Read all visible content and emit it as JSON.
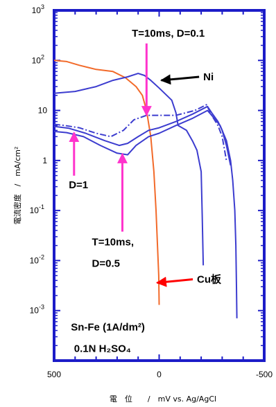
{
  "chart_data": {
    "type": "line",
    "title": "",
    "xlabel": "電　位　　/　mV vs. Ag/AgCl",
    "ylabel": "電流密度　/　mA/cm²",
    "x_scale": "linear",
    "xlim": [
      500,
      -500
    ],
    "y_scale": "log",
    "ylim": [
      0.0001,
      1000
    ],
    "x_ticks": [
      "500",
      "0",
      "-500"
    ],
    "y_ticks": [
      {
        "base": "10",
        "exp": "3"
      },
      {
        "base": "10",
        "exp": "2"
      },
      {
        "base": "10",
        "exp": ""
      },
      {
        "base": "1",
        "exp": ""
      },
      {
        "base": "10",
        "exp": "-1"
      },
      {
        "base": "10",
        "exp": "-2"
      },
      {
        "base": "10",
        "exp": "-3"
      }
    ],
    "grid": false,
    "series": [
      {
        "color": "#f26a2a",
        "style": "solid",
        "points": [
          [
            500,
            100
          ],
          [
            440,
            95
          ],
          [
            380,
            80
          ],
          [
            300,
            66
          ],
          [
            220,
            60
          ],
          [
            160,
            45
          ],
          [
            110,
            30
          ],
          [
            80,
            20
          ],
          [
            60,
            10
          ],
          [
            40,
            3
          ],
          [
            25,
            0.6
          ],
          [
            15,
            0.1
          ],
          [
            8,
            0.02
          ],
          [
            2,
            0.005
          ],
          [
            0,
            0.0013
          ]
        ]
      },
      {
        "color": "#3c3ccf",
        "style": "solid",
        "points": [
          [
            500,
            22
          ],
          [
            400,
            24
          ],
          [
            300,
            30
          ],
          [
            220,
            40
          ],
          [
            150,
            47
          ],
          [
            100,
            55
          ],
          [
            70,
            50
          ],
          [
            40,
            40
          ],
          [
            0,
            28
          ],
          [
            -60,
            16
          ],
          [
            -80,
            9
          ],
          [
            -90,
            5
          ],
          [
            -130,
            4
          ],
          [
            -160,
            2.4
          ],
          [
            -180,
            1.6
          ],
          [
            -200,
            0.6
          ],
          [
            -205,
            0.08
          ],
          [
            -210,
            0.008
          ]
        ]
      },
      {
        "color": "#3c3ccf",
        "style": "dashdot",
        "points": [
          [
            500,
            5.3
          ],
          [
            450,
            5
          ],
          [
            380,
            4.5
          ],
          [
            300,
            3.5
          ],
          [
            230,
            3
          ],
          [
            170,
            4
          ],
          [
            120,
            6.5
          ],
          [
            60,
            8
          ],
          [
            0,
            8
          ],
          [
            -80,
            8
          ],
          [
            -170,
            10
          ],
          [
            -225,
            13
          ],
          [
            -250,
            8
          ],
          [
            -280,
            5
          ],
          [
            -300,
            3
          ],
          [
            -320,
            1
          ]
        ]
      },
      {
        "color": "#3c3ccf",
        "style": "solid",
        "points": [
          [
            500,
            4.8
          ],
          [
            430,
            4.4
          ],
          [
            350,
            3.5
          ],
          [
            260,
            2.5
          ],
          [
            190,
            2
          ],
          [
            150,
            2.2
          ],
          [
            100,
            3
          ],
          [
            50,
            4
          ],
          [
            0,
            4.5
          ],
          [
            -80,
            6
          ],
          [
            -160,
            8.5
          ],
          [
            -230,
            12
          ],
          [
            -250,
            9
          ],
          [
            -280,
            6
          ],
          [
            -300,
            4
          ],
          [
            -320,
            2
          ],
          [
            -340,
            0.8
          ]
        ]
      },
      {
        "color": "#3c3ccf",
        "style": "solid",
        "points": [
          [
            500,
            3.8
          ],
          [
            440,
            3.6
          ],
          [
            360,
            3
          ],
          [
            280,
            2
          ],
          [
            200,
            1.4
          ],
          [
            150,
            1.3
          ],
          [
            110,
            2
          ],
          [
            50,
            3
          ],
          [
            0,
            3.5
          ],
          [
            -80,
            5
          ],
          [
            -160,
            7
          ],
          [
            -230,
            10
          ],
          [
            -250,
            8
          ],
          [
            -290,
            5
          ],
          [
            -320,
            2.5
          ],
          [
            -340,
            1
          ],
          [
            -350,
            0.4
          ],
          [
            -360,
            0.1
          ],
          [
            -365,
            0.02
          ],
          [
            -368,
            0.003
          ],
          [
            -370,
            0.0007
          ]
        ]
      }
    ],
    "annotations": [
      {
        "text": "T=10ms, D=0.1",
        "x": 130,
        "y": 300,
        "arrow_color": "#ff33cc",
        "arrow_to": [
          60,
          8
        ]
      },
      {
        "text": "Ni",
        "x": -210,
        "y": 40,
        "arrow_color": "#000000",
        "arrow_to": [
          -10,
          40
        ]
      },
      {
        "text": "D=1",
        "x": 430,
        "y": 0.28,
        "arrow_color": "#ff33cc",
        "arrow_to": [
          405,
          3.6
        ]
      },
      {
        "text": "T=10ms,",
        "x": 320,
        "y": 0.02,
        "arrow_color": "#ff33cc",
        "arrow_to": [
          175,
          1.35
        ]
      },
      {
        "text": "D=0.5",
        "x": 320,
        "y": 0.0075,
        "arrow_color": "",
        "arrow_to": null
      },
      {
        "text": "Cu板",
        "x": -180,
        "y": 0.0036,
        "arrow_color": "#ff0000",
        "arrow_to": [
          10,
          0.0036
        ]
      },
      {
        "text": "Sn-Fe (1A/dm²)",
        "x": 420,
        "y": 0.0004,
        "arrow_color": "",
        "arrow_to": null
      },
      {
        "text": "0.1N H₂SO₄",
        "x": 405,
        "y": 0.00015,
        "arrow_color": "",
        "arrow_to": null
      }
    ]
  }
}
